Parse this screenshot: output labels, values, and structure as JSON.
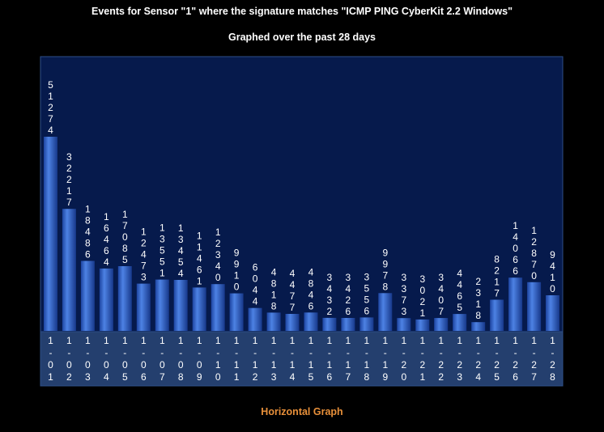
{
  "header": {
    "title": "Events for Sensor \"1\" where the signature matches \"ICMP PING CyberKit 2.2 Windows\"",
    "subtitle": "Graphed over the past 28 days"
  },
  "footer": {
    "link_label": "Horizontal Graph"
  },
  "colors": {
    "background": "#000000",
    "plot_background": "#061a4c",
    "axis_band": "#243f6e",
    "bar_light": "#4a7ee0",
    "bar_dark": "#1a3d94",
    "link": "#e8903a"
  },
  "chart_data": {
    "type": "bar",
    "title": "Events for Sensor \"1\" where the signature matches \"ICMP PING CyberKit 2.2 Windows\"",
    "subtitle": "Graphed over the past 28 days",
    "xlabel": "",
    "ylabel": "",
    "categories": [
      "1-01",
      "1-02",
      "1-03",
      "1-04",
      "1-05",
      "1-06",
      "1-07",
      "1-08",
      "1-09",
      "1-10",
      "1-11",
      "1-12",
      "1-13",
      "1-14",
      "1-15",
      "1-16",
      "1-17",
      "1-18",
      "1-19",
      "1-20",
      "1-21",
      "1-22",
      "1-23",
      "1-24",
      "1-25",
      "1-26",
      "1-27",
      "1-28"
    ],
    "values": [
      51274,
      32217,
      18486,
      16464,
      17085,
      12473,
      13551,
      13454,
      11461,
      12340,
      9910,
      6044,
      4818,
      4477,
      4846,
      3432,
      3426,
      3556,
      9978,
      3373,
      3021,
      3407,
      4465,
      2318,
      8217,
      14066,
      12870,
      9410
    ],
    "ylim": [
      0,
      51274
    ],
    "grid": false,
    "legend": "none"
  }
}
